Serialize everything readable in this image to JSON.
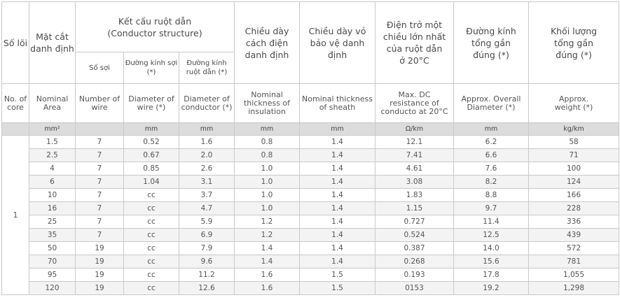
{
  "header": {
    "core_vn": "Số lõi",
    "area_vn": "Mặt cắt danh định",
    "structure_vn": "Kết cấu ruột dẫn",
    "structure_en": "(Conductor structure)",
    "wire_count_vn": "Số sợi",
    "wire_diam_vn": "Đường kính sợi (*)",
    "cond_diam_vn": "Đường kính ruột dẫn (*)",
    "insul_vn": "Chiều dày cách điện danh định",
    "sheath_vn": "Chiều dày vỏ bảo vệ danh định",
    "resist_vn": "Điện trở một chiều lớn nhất của ruột dẫn ở 20°C",
    "diam_vn": "Đường kính tổng gần đúng (*)",
    "weight_vn": "Khối lượng tổng gần đúng (*)"
  },
  "header_en": {
    "core": "No. of core",
    "area": "Nominal Area",
    "wire_count": "Number of wire",
    "wire_diam": "Diameter of wire (*)",
    "cond_diam": "Diameter of conductor (*)",
    "insul": "Nominal thickness of insulation",
    "sheath": "Nominal thickness of sheath",
    "resist": "Max. DC resistance of conducto at 20°C",
    "diam": "Approx. Overall Diameter (*)",
    "weight": "Approx. weight (*)"
  },
  "units": [
    "mm²",
    "",
    "mm",
    "mm",
    "mm",
    "mm",
    "Ω/km",
    "mm",
    "kg/km"
  ],
  "core_value": "1",
  "rows": [
    [
      "1.5",
      "7",
      "0.52",
      "1.6",
      "0.8",
      "1.4",
      "12.1",
      "6.2",
      "58"
    ],
    [
      "2.5",
      "7",
      "0.67",
      "2.0",
      "0.8",
      "1.4",
      "7.41",
      "6.6",
      "71"
    ],
    [
      "4",
      "7",
      "0.85",
      "2.6",
      "1.0",
      "1.4",
      "4.61",
      "7.6",
      "100"
    ],
    [
      "6",
      "7",
      "1.04",
      "3.1",
      "1.0",
      "1.4",
      "3.08",
      "8.2",
      "124"
    ],
    [
      "10",
      "7",
      "cc",
      "3.7",
      "1.0",
      "1.4",
      "1.83",
      "8.8",
      "166"
    ],
    [
      "16",
      "7",
      "cc",
      "4.7",
      "1.0",
      "1.4",
      "1.15",
      "9.7",
      "228"
    ],
    [
      "25",
      "7",
      "cc",
      "5.9",
      "1.2",
      "1.4",
      "0.727",
      "11.4",
      "336"
    ],
    [
      "35",
      "7",
      "cc",
      "6.9",
      "1.2",
      "1.4",
      "0.524",
      "12.5",
      "439"
    ],
    [
      "50",
      "19",
      "cc",
      "7.9",
      "1.4",
      "1.4",
      "0.387",
      "14.0",
      "572"
    ],
    [
      "70",
      "19",
      "cc",
      "9.6",
      "1.4",
      "1.4",
      "0.268",
      "15.6",
      "781"
    ],
    [
      "95",
      "19",
      "cc",
      "11.2",
      "1.6",
      "1.5",
      "0.193",
      "17.8",
      "1,055"
    ],
    [
      "120",
      "19",
      "cc",
      "12.6",
      "1.6",
      "1.5",
      "0153",
      "19.2",
      "1,298"
    ]
  ]
}
